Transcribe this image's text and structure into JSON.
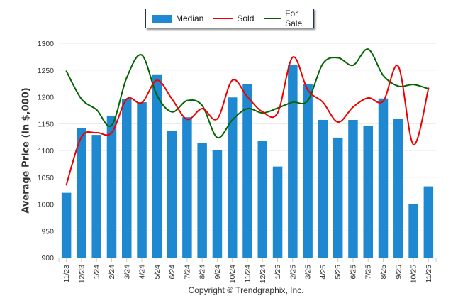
{
  "chart_data": {
    "type": "bar",
    "title": "",
    "xlabel": "",
    "ylabel": "Average Price (in $,000)",
    "ylim": [
      900,
      1300
    ],
    "yticks": [
      900,
      950,
      1000,
      1050,
      1100,
      1150,
      1200,
      1250,
      1300
    ],
    "grid": true,
    "legend_position": "top-center",
    "categories": [
      "11/23",
      "12/23",
      "1/24",
      "2/24",
      "3/24",
      "4/24",
      "5/24",
      "6/24",
      "7/24",
      "8/24",
      "9/24",
      "10/24",
      "11/24",
      "12/24",
      "1/25",
      "2/25",
      "3/25",
      "4/25",
      "5/25",
      "6/25",
      "7/25",
      "8/25",
      "9/25",
      "10/25",
      "11/25"
    ],
    "series": [
      {
        "name": "Median",
        "kind": "bar",
        "color": "#1e88d0",
        "values": [
          1021,
          1142,
          1129,
          1165,
          1196,
          1190,
          1242,
          1137,
          1162,
          1114,
          1100,
          1199,
          1224,
          1118,
          1070,
          1259,
          1224,
          1157,
          1124,
          1157,
          1145,
          1197,
          1159,
          1000,
          1033
        ]
      },
      {
        "name": "Sold",
        "kind": "line",
        "color": "#ee0000",
        "values": [
          1036,
          1125,
          1133,
          1133,
          1196,
          1189,
          1231,
          1196,
          1158,
          1178,
          1159,
          1231,
          1200,
          1172,
          1170,
          1274,
          1213,
          1190,
          1153,
          1181,
          1198,
          1192,
          1257,
          1111,
          1216
        ]
      },
      {
        "name": "For Sale",
        "kind": "line",
        "color": "#006400",
        "values": [
          1248,
          1196,
          1176,
          1147,
          1236,
          1278,
          1203,
          1172,
          1193,
          1184,
          1124,
          1157,
          1178,
          1170,
          1179,
          1190,
          1193,
          1262,
          1273,
          1259,
          1289,
          1240,
          1220,
          1223,
          1215
        ]
      }
    ],
    "footer": "Copyright © Trendgraphix, Inc."
  },
  "legend": {
    "items": [
      {
        "label": "Median",
        "color": "#1e88d0"
      },
      {
        "label": "Sold",
        "color": "#ee0000"
      },
      {
        "label": "For Sale",
        "color": "#006400"
      }
    ]
  }
}
